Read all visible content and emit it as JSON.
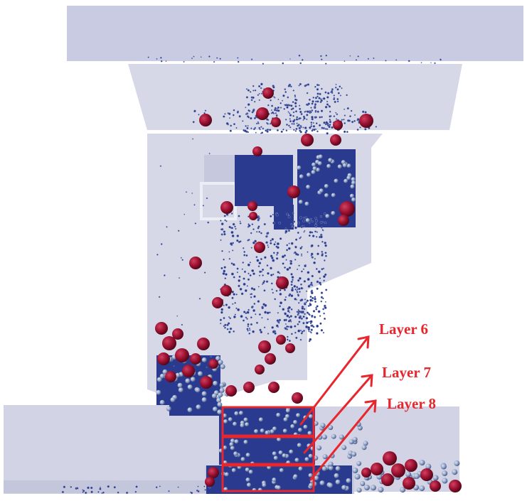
{
  "colors": {
    "housing": "#d6d8e8",
    "housing_dark": "#c6c8e0",
    "particle_blue": "#27358a",
    "particle_light": "#a7b4cf",
    "particle_red": "#9a1030",
    "annotation": "#e8262d"
  },
  "labels": {
    "layer6": "Layer 6",
    "layer7": "Layer 7",
    "layer8": "Layer 8"
  }
}
